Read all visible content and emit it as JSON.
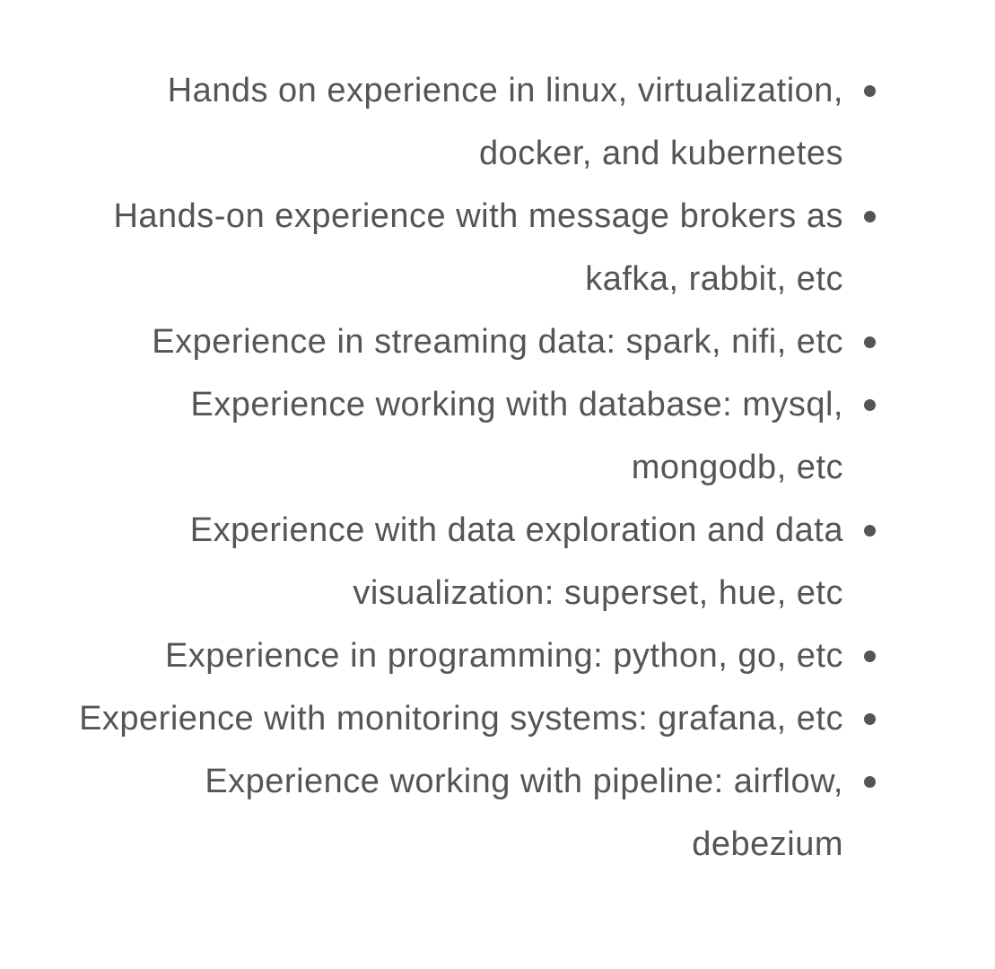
{
  "requirements": {
    "items": [
      {
        "text": "Hands on experience in linux, virtualization, docker, and kubernetes"
      },
      {
        "text": "Hands-on experience with message brokers as kafka, rabbit, etc"
      },
      {
        "text": "Experience in streaming data: spark, nifi, etc"
      },
      {
        "text": "Experience working with database: mysql, mongodb, etc"
      },
      {
        "text": "Experience with data exploration and data visualization: superset, hue, etc"
      },
      {
        "text": "Experience in programming: python, go, etc"
      },
      {
        "text": "Experience with monitoring systems: grafana, etc"
      },
      {
        "text": "Experience working with pipeline: airflow, debezium"
      }
    ]
  }
}
